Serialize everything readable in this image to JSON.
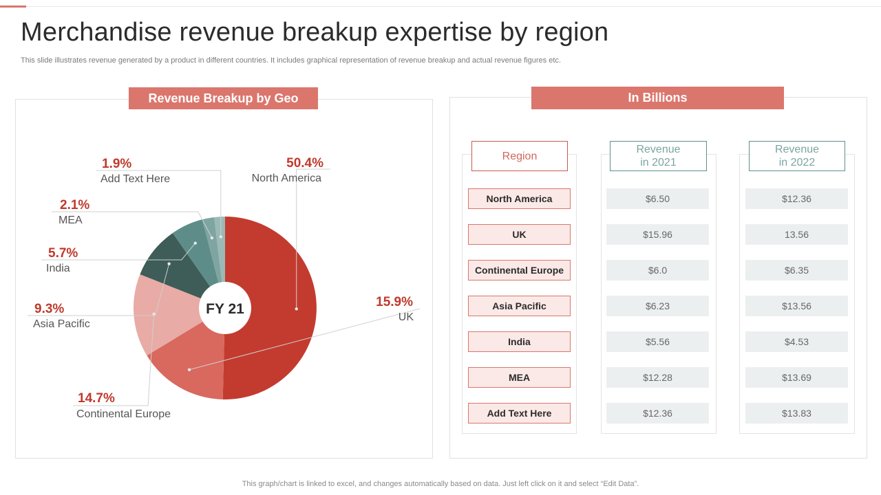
{
  "page": {
    "title": "Merchandise revenue breakup expertise by region",
    "subtitle": "This slide illustrates revenue generated by a product in different countries. It includes graphical representation of revenue breakup and actual revenue figures etc.",
    "footer": "This graph/chart is linked to excel,  and changes automatically based on data. Just left click on it and select “Edit Data”."
  },
  "left_panel": {
    "header": "Revenue Breakup by Geo"
  },
  "right_panel": {
    "header": "In Billions",
    "columns": [
      "Region",
      "Revenue\nin 2021",
      "Revenue\nin 2022"
    ],
    "rows": [
      {
        "region": "North America",
        "rev2021": "$6.50",
        "rev2022": "$12.36"
      },
      {
        "region": "UK",
        "rev2021": "$15.96",
        "rev2022": "13.56"
      },
      {
        "region": "Continental Europe",
        "rev2021": "$6.0",
        "rev2022": "$6.35"
      },
      {
        "region": "Asia Pacific",
        "rev2021": "$6.23",
        "rev2022": "$13.56"
      },
      {
        "region": "India",
        "rev2021": "$5.56",
        "rev2022": "$4.53"
      },
      {
        "region": "MEA",
        "rev2021": "$12.28",
        "rev2022": "$13.69"
      },
      {
        "region": "Add  Text Here",
        "rev2021": "$12.36",
        "rev2022": "$13.83"
      }
    ]
  },
  "colors": {
    "accent": "#db766c",
    "label_pct": "#c0392b",
    "region_border": "#d9766b",
    "region_fill": "#fbe9e7",
    "value_fill": "#eceff0",
    "teal_border": "#5d8f8b"
  },
  "chart_data": {
    "type": "pie",
    "donut": true,
    "center_label": "FY 21",
    "slices": [
      {
        "name": "North America",
        "value": 50.4,
        "label": "50.4%",
        "color": "#c33b2f"
      },
      {
        "name": "UK",
        "value": 15.9,
        "label": "15.9%",
        "color": "#d9685e"
      },
      {
        "name": "Continental  Europe",
        "value": 14.7,
        "label": "14.7%",
        "color": "#e8aba5"
      },
      {
        "name": "Asia Pacific",
        "value": 9.3,
        "label": "9.3%",
        "color": "#3e5c58"
      },
      {
        "name": "India",
        "value": 5.7,
        "label": "5.7%",
        "color": "#5e8d89"
      },
      {
        "name": "MEA",
        "value": 2.1,
        "label": "2.1%",
        "color": "#7fa5a2"
      },
      {
        "name": "Add Text Here",
        "value": 1.9,
        "label": "1.9%",
        "color": "#9bb9b6"
      }
    ]
  }
}
